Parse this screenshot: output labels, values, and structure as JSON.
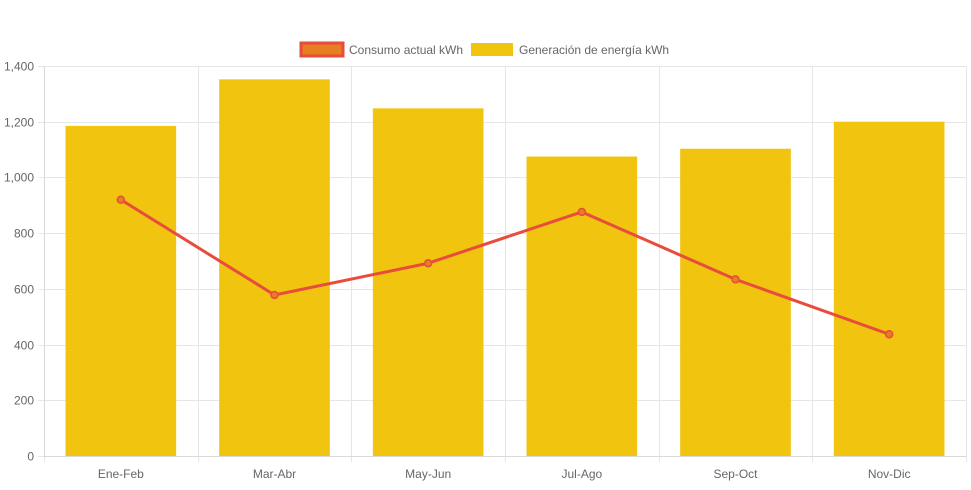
{
  "chart_data": {
    "type": "bar",
    "title": "",
    "xlabel": "",
    "ylabel": "",
    "categories": [
      "Ene-Feb",
      "Mar-Abr",
      "May-Jun",
      "Jul-Ago",
      "Sep-Oct",
      "Nov-Dic"
    ],
    "ylim": [
      0,
      1400
    ],
    "y_ticks": [
      0,
      200,
      400,
      600,
      800,
      1000,
      1200,
      1400
    ],
    "y_tick_labels": [
      "0",
      "200",
      "400",
      "600",
      "800",
      "1,000",
      "1,200",
      "1,400"
    ],
    "grid": true,
    "legend_position": "top",
    "series": [
      {
        "name": "Consumo actual kWh",
        "type": "line",
        "color": "#e74c3c",
        "legend_fill": "#e67e22",
        "values": [
          920,
          578,
          692,
          876,
          634,
          437
        ]
      },
      {
        "name": "Generación de energía kWh",
        "type": "bar",
        "color": "#f1c40f",
        "values": [
          1185,
          1352,
          1248,
          1075,
          1103,
          1200
        ]
      }
    ]
  }
}
